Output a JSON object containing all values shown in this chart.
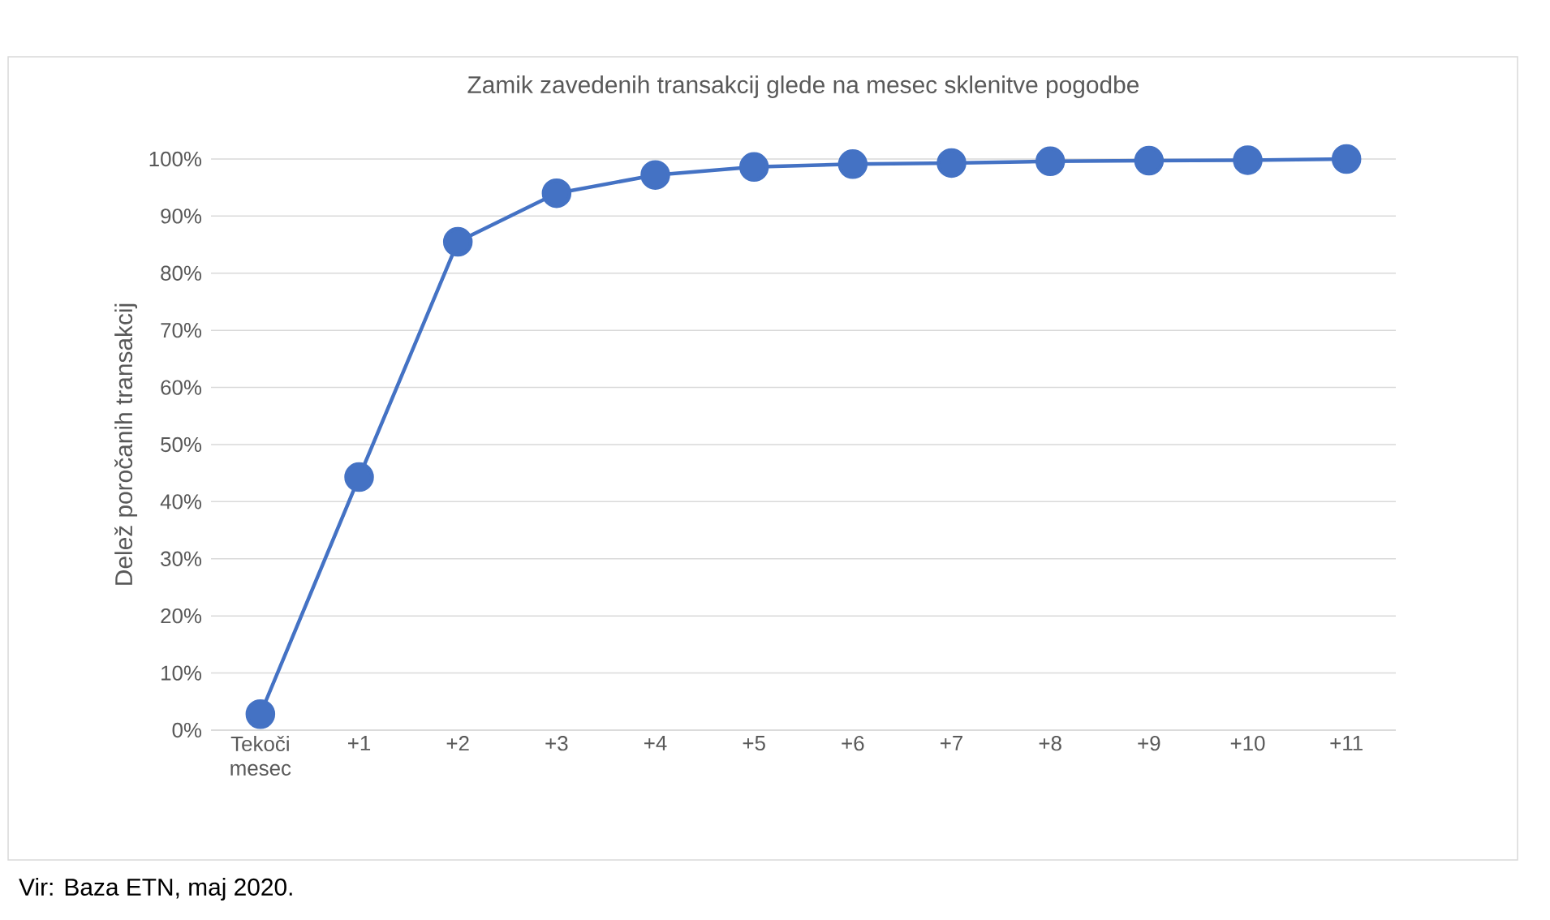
{
  "chart_data": {
    "type": "line",
    "title": "Zamik zavedenih transakcij glede na mesec sklenitve pogodbe",
    "ylabel": "Delež poročanih transakcij",
    "categories": [
      "Tekoči mesec",
      "+1",
      "+2",
      "+3",
      "+4",
      "+5",
      "+6",
      "+7",
      "+8",
      "+9",
      "+10",
      "+11"
    ],
    "series": [
      {
        "color": "#4472c4",
        "values": [
          2.8,
          44.3,
          85.5,
          94.0,
          97.2,
          98.6,
          99.1,
          99.3,
          99.6,
          99.7,
          99.8,
          100
        ]
      }
    ],
    "ylim": [
      0,
      100
    ],
    "yticks": [
      {
        "value": 0,
        "label": "0%"
      },
      {
        "value": 10,
        "label": "10%"
      },
      {
        "value": 20,
        "label": "20%"
      },
      {
        "value": 30,
        "label": "30%"
      },
      {
        "value": 40,
        "label": "40%"
      },
      {
        "value": 50,
        "label": "50%"
      },
      {
        "value": 60,
        "label": "60%"
      },
      {
        "value": 70,
        "label": "70%"
      },
      {
        "value": 80,
        "label": "80%"
      },
      {
        "value": 90,
        "label": "90%"
      },
      {
        "value": 100,
        "label": "100%"
      }
    ],
    "grid": "y",
    "marker": "circle",
    "line_style": "solid",
    "annotations": [
      "Vir: Baza ETN, maj 2020."
    ]
  }
}
